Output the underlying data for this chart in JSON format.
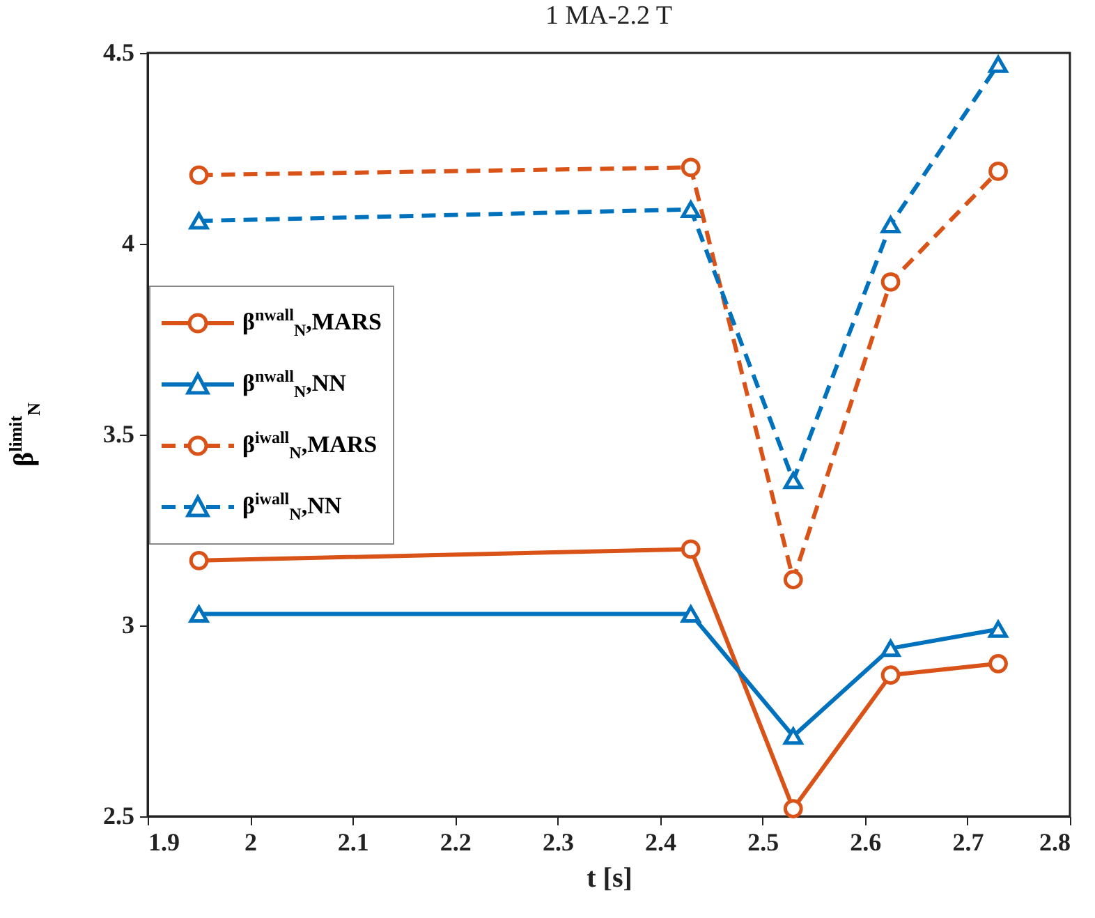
{
  "chart_data": {
    "type": "line",
    "title": "1 MA-2.2 T",
    "xlabel": "t [s]",
    "ylabel": "β$^{limit}$$_{N}$",
    "x": [
      1.95,
      2.43,
      2.53,
      2.625,
      2.73
    ],
    "xlim": [
      1.9,
      2.8
    ],
    "xticks": [
      1.9,
      2,
      2.1,
      2.2,
      2.3,
      2.4,
      2.5,
      2.6,
      2.7,
      2.8
    ],
    "ylim": [
      2.5,
      4.5
    ],
    "yticks": [
      2.5,
      3,
      3.5,
      4,
      4.5
    ],
    "grid": false,
    "legend": "left",
    "series": [
      {
        "name": "β$^{nwall}$$_{N}$,MARS",
        "color": "#d95319",
        "marker": "circle",
        "line_style": "solid",
        "values": [
          3.17,
          3.2,
          2.52,
          2.87,
          2.9
        ]
      },
      {
        "name": "β$^{nwall}$$_{N}$,NN",
        "color": "#0072bd",
        "marker": "triangle",
        "line_style": "solid",
        "values": [
          3.03,
          3.03,
          2.71,
          2.94,
          2.99
        ]
      },
      {
        "name": "β$^{iwall}$$_{N}$,MARS",
        "color": "#d95319",
        "marker": "circle",
        "line_style": "dashed",
        "values": [
          4.18,
          4.2,
          3.12,
          3.9,
          4.19
        ]
      },
      {
        "name": "β$^{iwall}$$_{N}$,NN",
        "color": "#0072bd",
        "marker": "triangle",
        "line_style": "dashed",
        "values": [
          4.06,
          4.09,
          3.38,
          4.05,
          4.47
        ]
      }
    ]
  }
}
